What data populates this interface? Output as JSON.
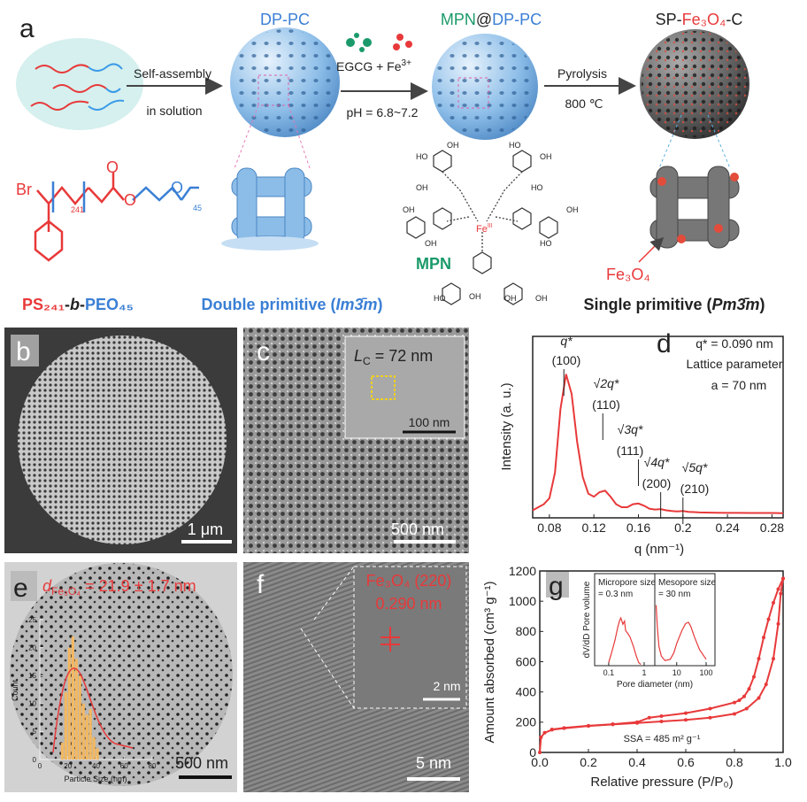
{
  "panel_a": {
    "label": "a",
    "dp_pc": "DP-PC",
    "mpn_title": {
      "mpn": "MPN",
      "at": "@",
      "dp_pc": "DP-PC"
    },
    "sp_title": {
      "sp": "SP-",
      "fe3o4": "Fe₃O₄",
      "c": "-C"
    },
    "step1": {
      "top": "Self-assembly",
      "bottom": "in solution"
    },
    "step2": {
      "egcg": "EGCG + Fe",
      "charge": "3+",
      "ph": "pH = 6.8~7.2"
    },
    "step3": {
      "top": "Pyrolysis",
      "bottom": "800 ℃"
    },
    "polymer": {
      "br": "Br",
      "n1": "241",
      "n2": "45",
      "o1": "O",
      "o2": "O",
      "o3": "O"
    },
    "copolymer": {
      "ps": "PS₂₄₁",
      "dash1": "-",
      "b": "b",
      "dash2": "-",
      "peo": "PEO₄₅"
    },
    "double_primitive": {
      "text": "Double primitive (",
      "sym": "Im3̄m",
      "close": ")"
    },
    "mpn": {
      "label": "MPN",
      "fe": "Fe",
      "ox": "III",
      "groups": [
        "HO",
        "OH",
        "HO",
        "OH",
        "OH",
        "HO",
        "OH",
        "OH",
        "HO",
        "OH",
        "HO",
        "OH",
        "OH",
        "OH"
      ]
    },
    "fe3o4": "Fe₃O₄",
    "single_primitive": {
      "text": "Single primitive (",
      "sym": "Pm3̄m",
      "close": ")"
    }
  },
  "panel_b": {
    "label": "b",
    "scale": "1 μm"
  },
  "panel_c": {
    "label": "c",
    "inset_l": "L",
    "inset_sub": "C",
    "inset_rest": " = 72 nm",
    "inset_scale": "100 nm",
    "scale": "500 nm"
  },
  "panel_d": {
    "label": "d",
    "annotations": [
      {
        "top": "q*",
        "bottom": "(100)"
      },
      {
        "top": "√2q*",
        "bottom": "(110)"
      },
      {
        "top": "√3q*",
        "bottom": "(111)"
      },
      {
        "top": "√4q*",
        "bottom": "(200)"
      },
      {
        "top": "√5q*",
        "bottom": "(210)"
      }
    ],
    "note1": "q* = 0.090 nm",
    "note2": "Lattice parameter",
    "note3": "a = 70 nm"
  },
  "panel_e": {
    "label": "e",
    "d": "d",
    "fe3o4": "Fe₃O₄",
    "size": " = 21.9 ± 1.7 nm",
    "scale": "500 nm"
  },
  "panel_f": {
    "label": "f",
    "plane": "Fe₃O₄ (220)",
    "spacing": "0.290 nm",
    "inset_scale": "2 nm",
    "scale": "5 nm"
  },
  "panel_g": {
    "label": "g",
    "ssa": "SSA = 485 m² g⁻¹",
    "micro1": "Micropore size",
    "micro2": "= 0.3 nm",
    "meso1": "Mesopore size",
    "meso2": "= 30 nm"
  },
  "chart_data": [
    {
      "type": "line",
      "xlabel": "q (nm⁻¹)",
      "ylabel": "Intensity (a. u.)",
      "xlim": [
        0.065,
        0.29
      ],
      "ylim": [
        0,
        1.2
      ],
      "xticks": [
        0.08,
        0.12,
        0.16,
        0.2,
        0.24,
        0.28
      ],
      "x": [
        0.065,
        0.07,
        0.075,
        0.08,
        0.085,
        0.09,
        0.095,
        0.1,
        0.105,
        0.11,
        0.115,
        0.12,
        0.125,
        0.13,
        0.135,
        0.14,
        0.145,
        0.15,
        0.155,
        0.16,
        0.165,
        0.17,
        0.175,
        0.18,
        0.185,
        0.19,
        0.195,
        0.2,
        0.205,
        0.21,
        0.215,
        0.22,
        0.23,
        0.24,
        0.25,
        0.26,
        0.27,
        0.28,
        0.29
      ],
      "series": [
        {
          "color": "#e8393a",
          "values": [
            0.05,
            0.07,
            0.09,
            0.13,
            0.3,
            0.72,
            0.95,
            0.82,
            0.5,
            0.27,
            0.16,
            0.14,
            0.17,
            0.18,
            0.14,
            0.09,
            0.07,
            0.07,
            0.09,
            0.095,
            0.08,
            0.06,
            0.055,
            0.058,
            0.05,
            0.045,
            0.042,
            0.045,
            0.04,
            0.038,
            0.036,
            0.035,
            0.034,
            0.033,
            0.033,
            0.032,
            0.032,
            0.032,
            0.031
          ]
        }
      ]
    },
    {
      "type": "line",
      "xlabel": "Relative pressure (P/P₀)",
      "ylabel": "Amount absorbed (cm³ g⁻¹)",
      "xlim": [
        0,
        1
      ],
      "ylim": [
        0,
        1200
      ],
      "xticks": [
        {
          "value": 0,
          "label": "0.0"
        },
        0.2,
        0.4,
        0.6,
        0.8,
        {
          "value": 1,
          "label": "1.0"
        }
      ],
      "yticks": [
        0,
        200,
        400,
        600,
        800,
        1000,
        1200
      ],
      "series": [
        {
          "color": "#e8393a",
          "x": [
            0,
            0.005,
            0.02,
            0.05,
            0.1,
            0.2,
            0.3,
            0.4,
            0.5,
            0.6,
            0.7,
            0.8,
            0.85,
            0.9,
            0.93,
            0.96,
            0.98,
            0.99,
            1
          ],
          "values": [
            0,
            100,
            130,
            150,
            160,
            175,
            185,
            195,
            205,
            215,
            230,
            255,
            290,
            360,
            450,
            620,
            850,
            1050,
            1150
          ]
        },
        {
          "color": "#e8393a",
          "x": [
            1,
            0.98,
            0.96,
            0.94,
            0.92,
            0.9,
            0.88,
            0.86,
            0.84,
            0.82,
            0.8,
            0.7,
            0.6,
            0.5,
            0.45,
            0.4,
            0.3,
            0.2,
            0.1,
            0.05
          ],
          "values": [
            1150,
            1080,
            990,
            880,
            760,
            620,
            500,
            420,
            370,
            345,
            330,
            290,
            260,
            240,
            230,
            200,
            187,
            176,
            162,
            152
          ]
        }
      ]
    },
    {
      "type": "histogram",
      "xlabel": "Particle Size (nm)",
      "ylabel": "Count",
      "xlim": [
        0,
        80
      ],
      "ylim": [
        0,
        25
      ],
      "xticks": [
        0,
        20,
        40,
        60,
        80
      ],
      "yticks": [
        0,
        5,
        10,
        15,
        20,
        25
      ],
      "color": "#f4b860",
      "bins": [
        15,
        17.5,
        20,
        22.5,
        25,
        27.5,
        30,
        32.5,
        35,
        37.5,
        40,
        42.5
      ],
      "values": [
        3,
        12,
        20,
        22,
        18,
        15,
        10,
        8,
        9,
        4,
        2
      ]
    },
    {
      "type": "line",
      "xscale": "log",
      "xlabel": "Pore diameter (nm)",
      "ylabel": "dV/dD Pore volume",
      "xlim": [
        0.04,
        2
      ],
      "ylim": [
        0,
        1
      ],
      "xticks": [
        0.1,
        1
      ],
      "series": [
        {
          "color": "#e8393a",
          "x": [
            0.1,
            0.12,
            0.15,
            0.18,
            0.2,
            0.22,
            0.25,
            0.28,
            0.3,
            0.35,
            0.4,
            0.5,
            0.6,
            0.7,
            0.8
          ],
          "values": [
            0.05,
            0.2,
            0.4,
            0.6,
            0.7,
            0.75,
            0.65,
            0.7,
            0.55,
            0.5,
            0.45,
            0.3,
            0.15,
            0.05,
            0.02
          ]
        }
      ]
    },
    {
      "type": "line",
      "xscale": "log",
      "xlim": [
        1.8,
        200
      ],
      "ylim": [
        0,
        1
      ],
      "xticks": [
        10,
        100
      ],
      "series": [
        {
          "color": "#e8393a",
          "x": [
            2,
            2.2,
            2.5,
            3,
            4,
            6,
            8,
            10,
            15,
            20,
            25,
            30,
            40,
            60,
            100
          ],
          "values": [
            0.95,
            0.6,
            0.3,
            0.15,
            0.08,
            0.1,
            0.2,
            0.35,
            0.55,
            0.66,
            0.68,
            0.62,
            0.45,
            0.25,
            0.1
          ]
        }
      ]
    }
  ]
}
